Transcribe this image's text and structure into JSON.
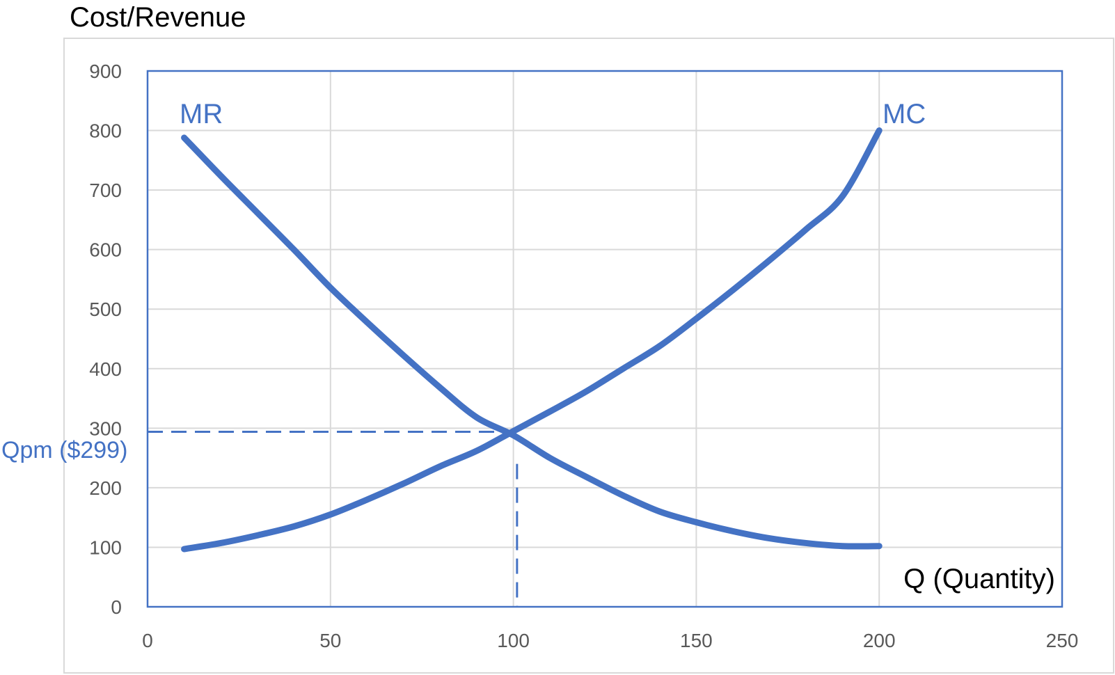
{
  "chart_data": {
    "type": "line",
    "title": "",
    "ylabel": "Cost/Revenue",
    "xlabel": "Q (Quantity)",
    "xlim": [
      0,
      250
    ],
    "ylim": [
      0,
      900
    ],
    "x_ticks": [
      0,
      50,
      100,
      150,
      200,
      250
    ],
    "y_ticks": [
      0,
      100,
      200,
      300,
      400,
      500,
      600,
      700,
      800,
      900
    ],
    "grid": true,
    "series": [
      {
        "name": "MR",
        "color": "#4472C4",
        "points": [
          [
            10,
            788
          ],
          [
            20,
            724
          ],
          [
            30,
            662
          ],
          [
            40,
            600
          ],
          [
            50,
            536
          ],
          [
            60,
            478
          ],
          [
            70,
            422
          ],
          [
            80,
            368
          ],
          [
            90,
            318
          ],
          [
            100,
            288
          ],
          [
            110,
            250
          ],
          [
            120,
            218
          ],
          [
            130,
            187
          ],
          [
            140,
            160
          ],
          [
            150,
            142
          ],
          [
            160,
            127
          ],
          [
            170,
            115
          ],
          [
            180,
            107
          ],
          [
            190,
            102
          ],
          [
            200,
            102
          ]
        ]
      },
      {
        "name": "MC",
        "color": "#4472C4",
        "points": [
          [
            10,
            97
          ],
          [
            20,
            107
          ],
          [
            30,
            120
          ],
          [
            40,
            135
          ],
          [
            50,
            155
          ],
          [
            60,
            180
          ],
          [
            70,
            207
          ],
          [
            80,
            236
          ],
          [
            90,
            262
          ],
          [
            100,
            295
          ],
          [
            110,
            328
          ],
          [
            120,
            362
          ],
          [
            130,
            400
          ],
          [
            140,
            438
          ],
          [
            150,
            484
          ],
          [
            160,
            532
          ],
          [
            170,
            582
          ],
          [
            180,
            634
          ],
          [
            190,
            690
          ],
          [
            200,
            800
          ]
        ]
      }
    ],
    "annotations": [
      {
        "text": "Qpm ($299)",
        "y": 294,
        "color": "#4472C4",
        "style": "dashed-horizontal"
      },
      {
        "x": 101,
        "color": "#4472C4",
        "style": "dashed-vertical"
      }
    ]
  }
}
